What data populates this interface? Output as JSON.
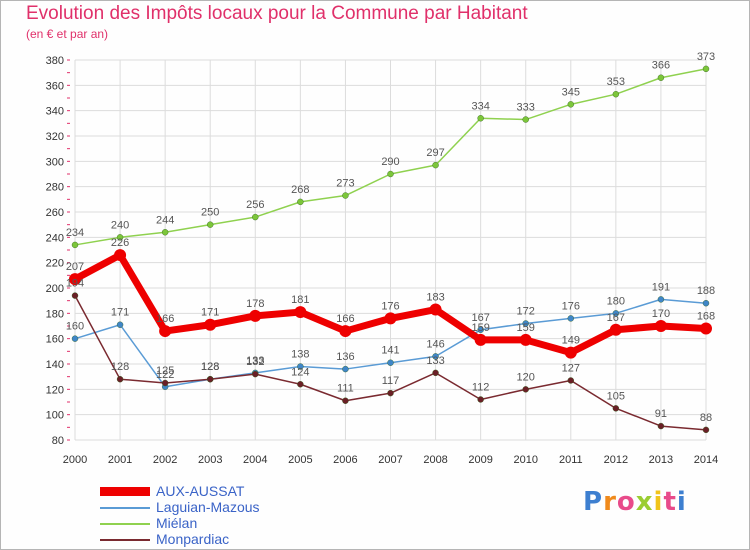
{
  "header": {
    "title": "Evolution des Impôts locaux pour la Commune par Habitant",
    "subtitle": "(en € et par an)"
  },
  "brand": {
    "logo_text": "Proxiti"
  },
  "colors": {
    "title": "#e0306a",
    "grid": "#dcdcdc",
    "axis_text": "#333333",
    "label_text": "#555555",
    "legend_text": "#3a63c7"
  },
  "chart_data": {
    "type": "line",
    "title": "Evolution des Impôts locaux pour la Commune par Habitant",
    "subtitle": "(en € et par an)",
    "x": [
      2000,
      2001,
      2002,
      2003,
      2004,
      2005,
      2006,
      2007,
      2008,
      2009,
      2010,
      2011,
      2012,
      2013,
      2014
    ],
    "ylim": [
      80,
      380
    ],
    "yticks": [
      80,
      100,
      120,
      140,
      160,
      180,
      200,
      220,
      240,
      260,
      280,
      300,
      320,
      340,
      360,
      380
    ],
    "grid": true,
    "legend_position": "bottom-left",
    "series": [
      {
        "name": "Miélan",
        "color": "#8fd14f",
        "dot": "#7cc63a",
        "width": 1.5,
        "thick": false,
        "values": [
          234,
          240,
          244,
          250,
          256,
          268,
          273,
          290,
          297,
          334,
          333,
          345,
          353,
          366,
          373
        ]
      },
      {
        "name": "Laguian-Mazous",
        "color": "#5a9bd5",
        "dot": "#3f86c8",
        "width": 1.5,
        "thick": false,
        "values": [
          160,
          171,
          122,
          128,
          133,
          138,
          136,
          141,
          146,
          167,
          172,
          176,
          180,
          191,
          188
        ]
      },
      {
        "name": "Monpardiac",
        "color": "#7a2a30",
        "dot": "#6a1f26",
        "width": 1.5,
        "thick": false,
        "values": [
          194,
          128,
          125,
          128,
          132,
          124,
          111,
          117,
          133,
          112,
          120,
          127,
          105,
          91,
          88
        ]
      },
      {
        "name": "AUX-AUSSAT",
        "color": "#ee0000",
        "dot": "#ee0000",
        "width": 7,
        "thick": true,
        "values": [
          207,
          226,
          166,
          171,
          178,
          181,
          166,
          176,
          183,
          159,
          159,
          149,
          167,
          170,
          168
        ]
      }
    ],
    "legend_order": [
      "AUX-AUSSAT",
      "Laguian-Mazous",
      "Miélan",
      "Monpardiac"
    ]
  }
}
